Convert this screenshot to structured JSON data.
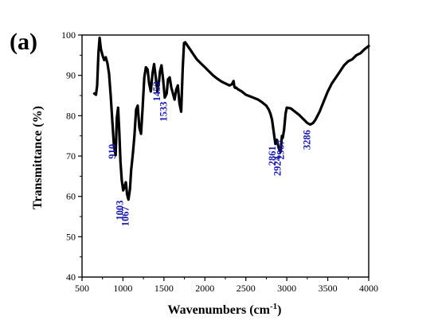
{
  "chart_data": {
    "type": "line",
    "panel_label": "(a)",
    "xlabel": "Wavenumbers (cm",
    "xlabel_sup": "-1",
    "xlabel_end": ")",
    "ylabel": "Transmittance (%)",
    "xlim": [
      500,
      4000
    ],
    "ylim": [
      40,
      100
    ],
    "xticks": [
      {
        "value": 500,
        "label": "500"
      },
      {
        "value": 1000,
        "label": "1000"
      },
      {
        "value": 1500,
        "label": "1500"
      },
      {
        "value": 2000,
        "label": "2000"
      },
      {
        "value": 2500,
        "label": "2500"
      },
      {
        "value": 3000,
        "label": "3000"
      },
      {
        "value": 3500,
        "label": "3500"
      },
      {
        "value": 4000,
        "label": "4000"
      }
    ],
    "yticks": [
      {
        "value": 40,
        "label": "40"
      },
      {
        "value": 50,
        "label": "50"
      },
      {
        "value": 60,
        "label": "60"
      },
      {
        "value": 70,
        "label": "70"
      },
      {
        "value": 80,
        "label": "80"
      },
      {
        "value": 90,
        "label": "90"
      },
      {
        "value": 100,
        "label": "100"
      }
    ],
    "line_color": "#000000",
    "annotation_color": "#1a1aa6",
    "series": [
      {
        "x": [
          650,
          670,
          685,
          700,
          715,
          730,
          750,
          770,
          790,
          810,
          830,
          850,
          870,
          890,
          910,
          925,
          940,
          955,
          970,
          985,
          1003,
          1020,
          1035,
          1050,
          1067,
          1085,
          1100,
          1120,
          1140,
          1160,
          1180,
          1200,
          1220,
          1240,
          1260,
          1280,
          1300,
          1320,
          1340,
          1360,
          1380,
          1400,
          1420,
          1440,
          1452,
          1470,
          1490,
          1510,
          1533,
          1550,
          1570,
          1590,
          1610,
          1630,
          1650,
          1670,
          1690,
          1710,
          1730,
          1745,
          1760,
          1800,
          1850,
          1900,
          1950,
          2000,
          2050,
          2100,
          2150,
          2200,
          2250,
          2300,
          2330,
          2350,
          2360,
          2370,
          2380,
          2400,
          2450,
          2500,
          2550,
          2600,
          2650,
          2700,
          2750,
          2780,
          2800,
          2820,
          2840,
          2861,
          2880,
          2900,
          2924,
          2940,
          2950,
          2967,
          2985,
          3000,
          3050,
          3100,
          3150,
          3200,
          3250,
          3286,
          3320,
          3350,
          3400,
          3450,
          3500,
          3550,
          3600,
          3650,
          3700,
          3750,
          3800,
          3850,
          3900,
          3950,
          4000
        ],
        "y": [
          85.5,
          85.2,
          87.5,
          95.5,
          99.3,
          96.5,
          95.0,
          93.8,
          94.5,
          93.0,
          90.5,
          85.0,
          78.5,
          72.5,
          70.2,
          79.5,
          82.0,
          76.0,
          68.5,
          64.0,
          61.5,
          62.5,
          63.5,
          60.5,
          59.2,
          61.8,
          66.5,
          70.5,
          75.0,
          81.5,
          82.5,
          77.0,
          75.5,
          82.0,
          89.5,
          92.0,
          91.5,
          88.0,
          86.0,
          90.5,
          92.8,
          89.5,
          86.0,
          88.5,
          91.0,
          92.5,
          89.0,
          84.5,
          85.5,
          89.0,
          89.5,
          87.0,
          85.5,
          84.0,
          86.5,
          87.5,
          83.0,
          81.0,
          92.0,
          98.0,
          98.2,
          97.0,
          95.5,
          94.0,
          93.0,
          92.0,
          91.0,
          90.0,
          89.2,
          88.5,
          88.0,
          87.5,
          87.8,
          88.6,
          87.2,
          86.9,
          87.0,
          86.6,
          86.0,
          85.2,
          84.8,
          84.4,
          84.0,
          83.3,
          82.5,
          81.5,
          80.5,
          79.0,
          76.0,
          73.0,
          74.0,
          72.0,
          71.0,
          75.0,
          74.5,
          76.5,
          80.5,
          82.0,
          81.8,
          81.0,
          80.2,
          79.2,
          78.2,
          77.8,
          78.2,
          79.0,
          81.0,
          83.5,
          86.0,
          88.0,
          89.5,
          91.0,
          92.5,
          93.5,
          94.0,
          95.0,
          95.5,
          96.5,
          97.3
        ]
      }
    ],
    "annotations": [
      {
        "x": 910,
        "y": 73,
        "text": "910"
      },
      {
        "x": 1003,
        "y": 59,
        "text": "1003"
      },
      {
        "x": 1067,
        "y": 57.5,
        "text": "1067"
      },
      {
        "x": 1452,
        "y": 88.5,
        "text": "1452"
      },
      {
        "x": 1533,
        "y": 83.5,
        "text": "1533"
      },
      {
        "x": 2861,
        "y": 72.5,
        "text": "2861"
      },
      {
        "x": 2924,
        "y": 70,
        "text": "2924"
      },
      {
        "x": 2967,
        "y": 74,
        "text": "2967"
      },
      {
        "x": 3286,
        "y": 76.5,
        "text": "3286"
      }
    ]
  }
}
